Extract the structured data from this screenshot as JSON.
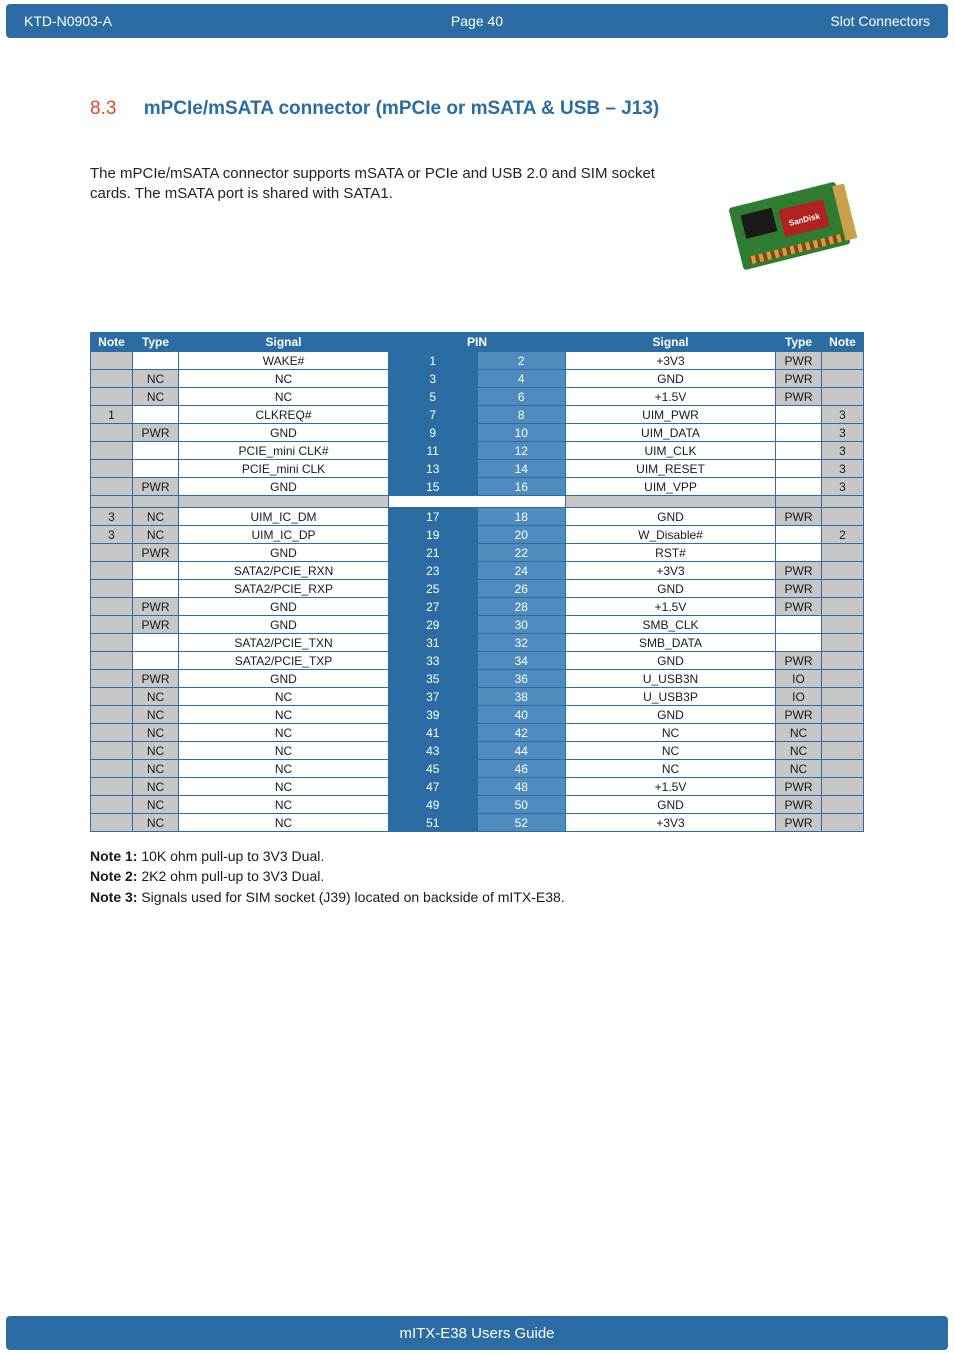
{
  "header": {
    "left": "KTD-N0903-A",
    "center": "Page 40",
    "right": "Slot Connectors"
  },
  "section": {
    "num": "8.3",
    "title": "mPCIe/mSATA connector (mPCIe or mSATA & USB – J13)"
  },
  "intro": "The mPCIe/mSATA connector supports mSATA or PCIe and USB 2.0 and SIM socket cards. The mSATA port is shared with SATA1.",
  "th": {
    "note": "Note",
    "type": "Type",
    "signal": "Signal",
    "pin": "PIN"
  },
  "rows1": [
    {
      "ln": "",
      "lt": "",
      "ls": "WAKE#",
      "p1": "1",
      "p2": "2",
      "rs": "+3V3",
      "rt": "PWR",
      "rn": ""
    },
    {
      "ln": "",
      "lt": "NC",
      "ls": "NC",
      "p1": "3",
      "p2": "4",
      "rs": "GND",
      "rt": "PWR",
      "rn": ""
    },
    {
      "ln": "",
      "lt": "NC",
      "ls": "NC",
      "p1": "5",
      "p2": "6",
      "rs": "+1.5V",
      "rt": "PWR",
      "rn": ""
    },
    {
      "ln": "1",
      "lt": "",
      "ls": "CLKREQ#",
      "p1": "7",
      "p2": "8",
      "rs": "UIM_PWR",
      "rt": "",
      "rn": "3"
    },
    {
      "ln": "",
      "lt": "PWR",
      "ls": "GND",
      "p1": "9",
      "p2": "10",
      "rs": "UIM_DATA",
      "rt": "",
      "rn": "3"
    },
    {
      "ln": "",
      "lt": "",
      "ls": "PCIE_mini CLK#",
      "p1": "11",
      "p2": "12",
      "rs": "UIM_CLK",
      "rt": "",
      "rn": "3"
    },
    {
      "ln": "",
      "lt": "",
      "ls": "PCIE_mini CLK",
      "p1": "13",
      "p2": "14",
      "rs": "UIM_RESET",
      "rt": "",
      "rn": "3"
    },
    {
      "ln": "",
      "lt": "PWR",
      "ls": "GND",
      "p1": "15",
      "p2": "16",
      "rs": "UIM_VPP",
      "rt": "",
      "rn": "3"
    }
  ],
  "rows2": [
    {
      "ln": "3",
      "lt": "NC",
      "ls": "UIM_IC_DM",
      "p1": "17",
      "p2": "18",
      "rs": "GND",
      "rt": "PWR",
      "rn": ""
    },
    {
      "ln": "3",
      "lt": "NC",
      "ls": "UIM_IC_DP",
      "p1": "19",
      "p2": "20",
      "rs": "W_Disable#",
      "rt": "",
      "rn": "2"
    },
    {
      "ln": "",
      "lt": "PWR",
      "ls": "GND",
      "p1": "21",
      "p2": "22",
      "rs": "RST#",
      "rt": "",
      "rn": ""
    },
    {
      "ln": "",
      "lt": "",
      "ls": "SATA2/PCIE_RXN",
      "p1": "23",
      "p2": "24",
      "rs": "+3V3",
      "rt": "PWR",
      "rn": ""
    },
    {
      "ln": "",
      "lt": "",
      "ls": "SATA2/PCIE_RXP",
      "p1": "25",
      "p2": "26",
      "rs": "GND",
      "rt": "PWR",
      "rn": ""
    },
    {
      "ln": "",
      "lt": "PWR",
      "ls": "GND",
      "p1": "27",
      "p2": "28",
      "rs": "+1.5V",
      "rt": "PWR",
      "rn": ""
    },
    {
      "ln": "",
      "lt": "PWR",
      "ls": "GND",
      "p1": "29",
      "p2": "30",
      "rs": "SMB_CLK",
      "rt": "",
      "rn": ""
    },
    {
      "ln": "",
      "lt": "",
      "ls": "SATA2/PCIE_TXN",
      "p1": "31",
      "p2": "32",
      "rs": "SMB_DATA",
      "rt": "",
      "rn": ""
    },
    {
      "ln": "",
      "lt": "",
      "ls": "SATA2/PCIE_TXP",
      "p1": "33",
      "p2": "34",
      "rs": "GND",
      "rt": "PWR",
      "rn": ""
    },
    {
      "ln": "",
      "lt": "PWR",
      "ls": "GND",
      "p1": "35",
      "p2": "36",
      "rs": "U_USB3N",
      "rt": "IO",
      "rn": ""
    },
    {
      "ln": "",
      "lt": "NC",
      "ls": "NC",
      "p1": "37",
      "p2": "38",
      "rs": "U_USB3P",
      "rt": "IO",
      "rn": ""
    },
    {
      "ln": "",
      "lt": "NC",
      "ls": "NC",
      "p1": "39",
      "p2": "40",
      "rs": "GND",
      "rt": "PWR",
      "rn": ""
    },
    {
      "ln": "",
      "lt": "NC",
      "ls": "NC",
      "p1": "41",
      "p2": "42",
      "rs": "NC",
      "rt": "NC",
      "rn": ""
    },
    {
      "ln": "",
      "lt": "NC",
      "ls": "NC",
      "p1": "43",
      "p2": "44",
      "rs": "NC",
      "rt": "NC",
      "rn": ""
    },
    {
      "ln": "",
      "lt": "NC",
      "ls": "NC",
      "p1": "45",
      "p2": "46",
      "rs": "NC",
      "rt": "NC",
      "rn": ""
    },
    {
      "ln": "",
      "lt": "NC",
      "ls": "NC",
      "p1": "47",
      "p2": "48",
      "rs": "+1.5V",
      "rt": "PWR",
      "rn": ""
    },
    {
      "ln": "",
      "lt": "NC",
      "ls": "NC",
      "p1": "49",
      "p2": "50",
      "rs": "GND",
      "rt": "PWR",
      "rn": ""
    },
    {
      "ln": "",
      "lt": "NC",
      "ls": "NC",
      "p1": "51",
      "p2": "52",
      "rs": "+3V3",
      "rt": "PWR",
      "rn": ""
    }
  ],
  "notes": {
    "n1l": "Note 1:",
    "n1t": " 10K ohm pull-up to 3V3 Dual.",
    "n2l": "Note 2:",
    "n2t": " 2K2 ohm pull-up to 3V3 Dual.",
    "n3l": "Note 3:",
    "n3t": " Signals used for SIM socket (J39) located on backside of mITX-E38."
  },
  "footer": "mITX-E38 Users Guide",
  "colors": {
    "header_bg": "#2b6ca3",
    "accent_red": "#d94c2a",
    "shade_grey": "#c7c7c7",
    "pin_light": "#4f8bbd"
  }
}
